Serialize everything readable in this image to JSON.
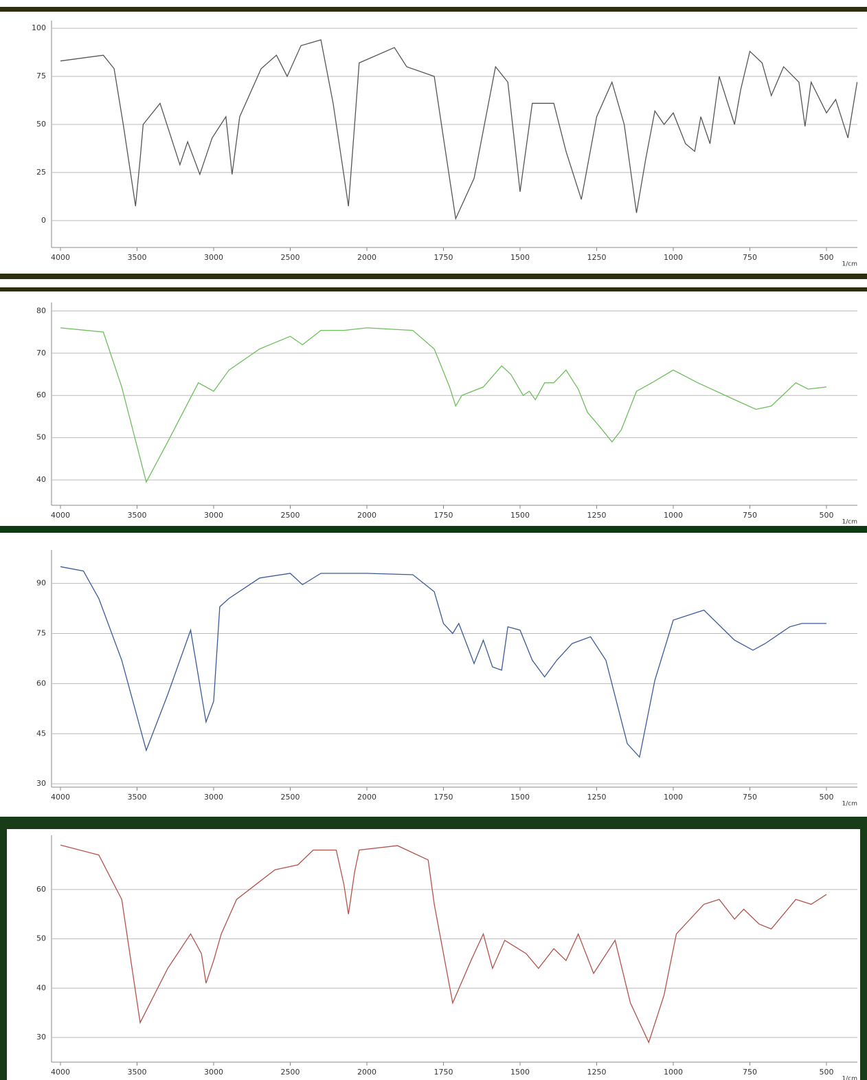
{
  "chart_data": [
    {
      "type": "line",
      "color": "#555555",
      "xlabel": "1/cm",
      "grid": true,
      "xlim": [
        4000,
        400
      ],
      "xticks": [
        4000,
        3500,
        3000,
        2500,
        2000,
        1750,
        1500,
        1250,
        1000,
        750,
        500
      ],
      "ylim": [
        -14,
        104
      ],
      "yticks": [
        0,
        25,
        50,
        75,
        100
      ],
      "x": [
        4000,
        3720,
        3650,
        3590,
        3510,
        3480,
        3460,
        3350,
        3220,
        3170,
        3090,
        3010,
        2920,
        2880,
        2830,
        2690,
        2590,
        2520,
        2430,
        2300,
        2220,
        2160,
        2120,
        2080,
        2050,
        1910,
        1870,
        1780,
        1750,
        1710,
        1650,
        1580,
        1540,
        1500,
        1460,
        1390,
        1350,
        1300,
        1250,
        1200,
        1160,
        1120,
        1090,
        1060,
        1030,
        1000,
        960,
        930,
        910,
        880,
        850,
        800,
        780,
        750,
        710,
        680,
        640,
        590,
        570,
        550,
        500,
        470,
        430,
        400
      ],
      "values": [
        83,
        86,
        79,
        50,
        7.5,
        32,
        50,
        61,
        29,
        41,
        24,
        43,
        54,
        24,
        54,
        79,
        86,
        75,
        91,
        94,
        61,
        29,
        7.5,
        50,
        82,
        90,
        80,
        75,
        43,
        1,
        22,
        80,
        72,
        15,
        61,
        61,
        36,
        11,
        54,
        72,
        50,
        4,
        32,
        57,
        50,
        56,
        40,
        36,
        54,
        40,
        75,
        50,
        68,
        88,
        82,
        65,
        80,
        72,
        49,
        72,
        56,
        63,
        43,
        72
      ]
    },
    {
      "type": "line",
      "color": "#6cbf5c",
      "xlabel": "1/cm",
      "grid": true,
      "xlim": [
        4000,
        400
      ],
      "xticks": [
        4000,
        3500,
        3000,
        2500,
        2000,
        1750,
        1500,
        1250,
        1000,
        750,
        500
      ],
      "ylim": [
        34,
        82
      ],
      "yticks": [
        40,
        50,
        60,
        70,
        80
      ],
      "x": [
        4000,
        3720,
        3600,
        3440,
        3300,
        3100,
        3000,
        2900,
        2700,
        2500,
        2420,
        2300,
        2150,
        2000,
        1850,
        1780,
        1730,
        1710,
        1690,
        1620,
        1560,
        1530,
        1490,
        1470,
        1450,
        1420,
        1390,
        1350,
        1310,
        1280,
        1240,
        1200,
        1170,
        1120,
        1070,
        1000,
        920,
        800,
        730,
        680,
        600,
        560,
        500
      ],
      "values": [
        76,
        75,
        62,
        39.5,
        49,
        63,
        61,
        66,
        71,
        74,
        72,
        75.4,
        75.4,
        76,
        75.4,
        71,
        62,
        57.5,
        60,
        62,
        67,
        65,
        60,
        61,
        59,
        63,
        63,
        66,
        61.5,
        56,
        52.6,
        49,
        51.8,
        61,
        63,
        66,
        63,
        59,
        56.7,
        57.5,
        63,
        61.5,
        62
      ]
    },
    {
      "type": "line",
      "color": "#3a5a9a",
      "xlabel": "1/cm",
      "grid": true,
      "xlim": [
        4000,
        400
      ],
      "xticks": [
        4000,
        3500,
        3000,
        2500,
        2000,
        1750,
        1500,
        1250,
        1000,
        750,
        500
      ],
      "ylim": [
        29,
        100
      ],
      "yticks": [
        30,
        45,
        60,
        75,
        90
      ],
      "x": [
        4000,
        3850,
        3750,
        3600,
        3440,
        3300,
        3150,
        3050,
        3000,
        2960,
        2900,
        2700,
        2500,
        2420,
        2300,
        2000,
        1850,
        1780,
        1750,
        1720,
        1700,
        1650,
        1620,
        1590,
        1560,
        1540,
        1500,
        1460,
        1420,
        1380,
        1330,
        1270,
        1220,
        1150,
        1110,
        1060,
        1000,
        900,
        800,
        740,
        700,
        620,
        580,
        530,
        500
      ],
      "values": [
        95,
        93.7,
        85.5,
        67,
        40,
        56.7,
        76,
        48.5,
        54.7,
        83,
        85.5,
        91.6,
        93,
        89.6,
        93,
        93,
        92.6,
        87.5,
        78,
        75,
        78,
        66,
        73,
        65,
        64,
        77,
        76,
        67,
        62,
        67,
        72,
        74,
        67,
        42,
        38,
        61,
        79,
        82,
        73,
        70,
        72,
        77,
        78,
        78,
        78
      ]
    },
    {
      "type": "line",
      "color": "#b5524a",
      "xlabel": "1/cm",
      "grid": true,
      "xlim": [
        4000,
        400
      ],
      "xticks": [
        4000,
        3500,
        3000,
        2500,
        2000,
        1750,
        1500,
        1250,
        1000,
        750,
        500
      ],
      "ylim": [
        25,
        71
      ],
      "yticks": [
        30,
        40,
        50,
        60
      ],
      "x": [
        4000,
        3750,
        3600,
        3480,
        3300,
        3150,
        3080,
        3050,
        3000,
        2950,
        2850,
        2600,
        2450,
        2350,
        2200,
        2150,
        2120,
        2080,
        2050,
        1900,
        1800,
        1780,
        1720,
        1660,
        1620,
        1590,
        1550,
        1480,
        1440,
        1390,
        1350,
        1310,
        1260,
        1190,
        1140,
        1080,
        1030,
        990,
        900,
        850,
        800,
        770,
        720,
        680,
        640,
        600,
        550,
        500
      ],
      "values": [
        69,
        67,
        58,
        33,
        44,
        51,
        47,
        41,
        45.6,
        51,
        58,
        64,
        65,
        68,
        68,
        61,
        55,
        63.6,
        68,
        68.9,
        66,
        57,
        37,
        45.6,
        51,
        44,
        49.7,
        47,
        44,
        48,
        45.6,
        51,
        43,
        49.7,
        37,
        29,
        38.6,
        51,
        57,
        58,
        54,
        56,
        53,
        52,
        55,
        58,
        57,
        59
      ]
    }
  ]
}
